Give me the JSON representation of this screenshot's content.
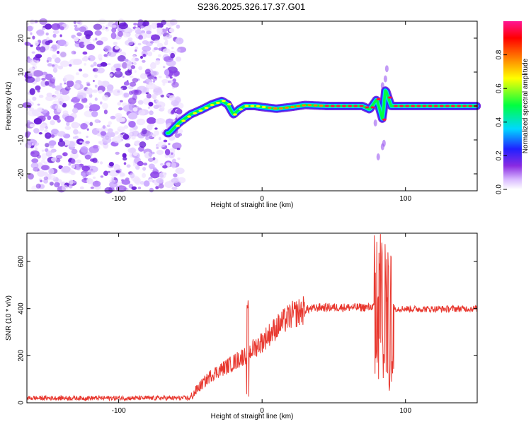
{
  "title": "S236.2025.326.17.37.G01",
  "chart_data": [
    {
      "type": "heatmap",
      "xlabel": "Height of straight line (km)",
      "ylabel": "Frequency (Hz)",
      "xlim": [
        -164,
        150
      ],
      "ylim": [
        -25,
        25
      ],
      "xticks": [
        -100,
        0,
        100
      ],
      "yticks": [
        -20,
        -10,
        0,
        10,
        20
      ],
      "xtick_labels": [
        "-100",
        "0",
        "100"
      ],
      "ytick_labels": [
        "-20",
        "-10",
        "0",
        "10",
        "20"
      ],
      "noise_region_x": [
        -164,
        -56
      ],
      "ridge": [
        {
          "x": -65,
          "f": -8
        },
        {
          "x": -58,
          "f": -5
        },
        {
          "x": -50,
          "f": -2.5
        },
        {
          "x": -42,
          "f": -1
        },
        {
          "x": -35,
          "f": 0.5
        },
        {
          "x": -28,
          "f": 1.5
        },
        {
          "x": -24,
          "f": 0.5
        },
        {
          "x": -20,
          "f": -2.5
        },
        {
          "x": -16,
          "f": -1
        },
        {
          "x": -12,
          "f": 0
        },
        {
          "x": -5,
          "f": 0
        },
        {
          "x": 0,
          "f": -0.3
        },
        {
          "x": 10,
          "f": -0.8
        },
        {
          "x": 20,
          "f": -0.3
        },
        {
          "x": 30,
          "f": 0.3
        },
        {
          "x": 45,
          "f": 0
        },
        {
          "x": 60,
          "f": 0
        },
        {
          "x": 70,
          "f": 0
        },
        {
          "x": 75,
          "f": -1
        },
        {
          "x": 80,
          "f": 2
        },
        {
          "x": 84,
          "f": -4
        },
        {
          "x": 86,
          "f": 5
        },
        {
          "x": 90,
          "f": 0
        },
        {
          "x": 100,
          "f": 0
        },
        {
          "x": 120,
          "f": 0
        },
        {
          "x": 150,
          "f": 0
        }
      ],
      "colorbar": {
        "label": "Normalized spectral amplitude",
        "range": [
          0,
          1
        ],
        "ticks": [
          0.0,
          0.2,
          0.4,
          0.6,
          0.8
        ],
        "tick_labels": [
          "0.0",
          "0.2",
          "0.4",
          "0.6",
          "0.8"
        ],
        "colors": [
          "#ffffff",
          "#d8b8ff",
          "#8a2be2",
          "#2020ff",
          "#00d8ff",
          "#00ff40",
          "#ffff00",
          "#ff8000",
          "#ff0000",
          "#ff1493"
        ]
      }
    },
    {
      "type": "line",
      "xlabel": "Height of straight line (km)",
      "ylabel": "SNR (10 * v/v)",
      "xlim": [
        -164,
        150
      ],
      "ylim": [
        0,
        720
      ],
      "xticks": [
        -100,
        0,
        100
      ],
      "yticks": [
        0,
        200,
        400,
        600
      ],
      "xtick_labels": [
        "-100",
        "0",
        "100"
      ],
      "ytick_labels": [
        "0",
        "200",
        "400",
        "600"
      ],
      "color": "#e8382f",
      "trend": [
        {
          "x": -164,
          "y": 20
        },
        {
          "x": -50,
          "y": 20
        },
        {
          "x": -45,
          "y": 60
        },
        {
          "x": -35,
          "y": 120
        },
        {
          "x": -20,
          "y": 170
        },
        {
          "x": -10,
          "y": 210
        },
        {
          "x": 0,
          "y": 260
        },
        {
          "x": 10,
          "y": 320
        },
        {
          "x": 20,
          "y": 370
        },
        {
          "x": 30,
          "y": 395
        },
        {
          "x": 40,
          "y": 405
        },
        {
          "x": 60,
          "y": 405
        },
        {
          "x": 75,
          "y": 405
        },
        {
          "x": 78,
          "y": 410
        },
        {
          "x": 95,
          "y": 400
        },
        {
          "x": 110,
          "y": 398
        },
        {
          "x": 150,
          "y": 400
        }
      ],
      "spikes": [
        {
          "x": -10,
          "y": 450
        },
        {
          "x": -10,
          "y": 10
        },
        {
          "x": 78,
          "y": 610
        },
        {
          "x": 84,
          "y": 720
        },
        {
          "x": 86,
          "y": 30
        },
        {
          "x": 88,
          "y": 700
        },
        {
          "x": 90,
          "y": 50
        }
      ]
    }
  ]
}
